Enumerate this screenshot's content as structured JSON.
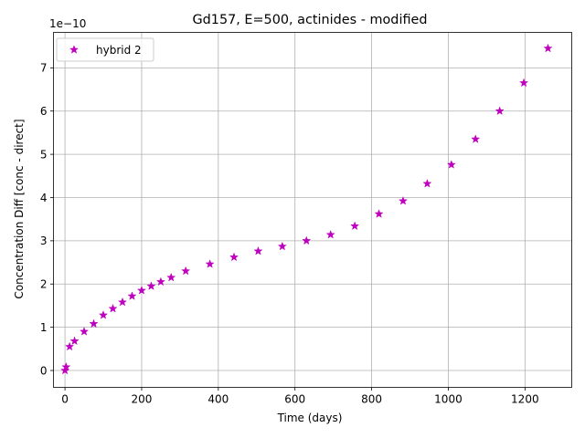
{
  "chart_data": {
    "type": "scatter",
    "title": "Gd157, E=500, actinides - modified",
    "xlabel": "Time (days)",
    "ylabel": "Concentration Diff [conc - direct]",
    "y_offset_text": "1e−10",
    "xlim": [
      -30,
      1322
    ],
    "ylim": [
      -0.39,
      7.82
    ],
    "xticks": [
      0,
      200,
      400,
      600,
      800,
      1000,
      1200
    ],
    "xtick_labels": [
      "0",
      "200",
      "400",
      "600",
      "800",
      "1000",
      "1200"
    ],
    "yticks": [
      0,
      1,
      2,
      3,
      4,
      5,
      6,
      7
    ],
    "ytick_labels": [
      "0",
      "1",
      "2",
      "3",
      "4",
      "5",
      "6",
      "7"
    ],
    "grid": true,
    "legend_position": "upper-left",
    "series": [
      {
        "name": "hybrid 2",
        "marker": "star",
        "color": "#bf00bf",
        "x": [
          0,
          3,
          12,
          25,
          50,
          75,
          100,
          125,
          150,
          175,
          200,
          225,
          250,
          277,
          315,
          378,
          441,
          504,
          567,
          630,
          693,
          756,
          819,
          882,
          945,
          1008,
          1071,
          1134,
          1197,
          1260
        ],
        "y": [
          0.0,
          0.08,
          0.55,
          0.68,
          0.9,
          1.08,
          1.28,
          1.43,
          1.58,
          1.72,
          1.85,
          1.95,
          2.05,
          2.15,
          2.3,
          2.46,
          2.62,
          2.76,
          2.87,
          3.0,
          3.14,
          3.34,
          3.62,
          3.92,
          4.32,
          4.76,
          5.35,
          6.0,
          6.65,
          7.45
        ]
      }
    ]
  }
}
